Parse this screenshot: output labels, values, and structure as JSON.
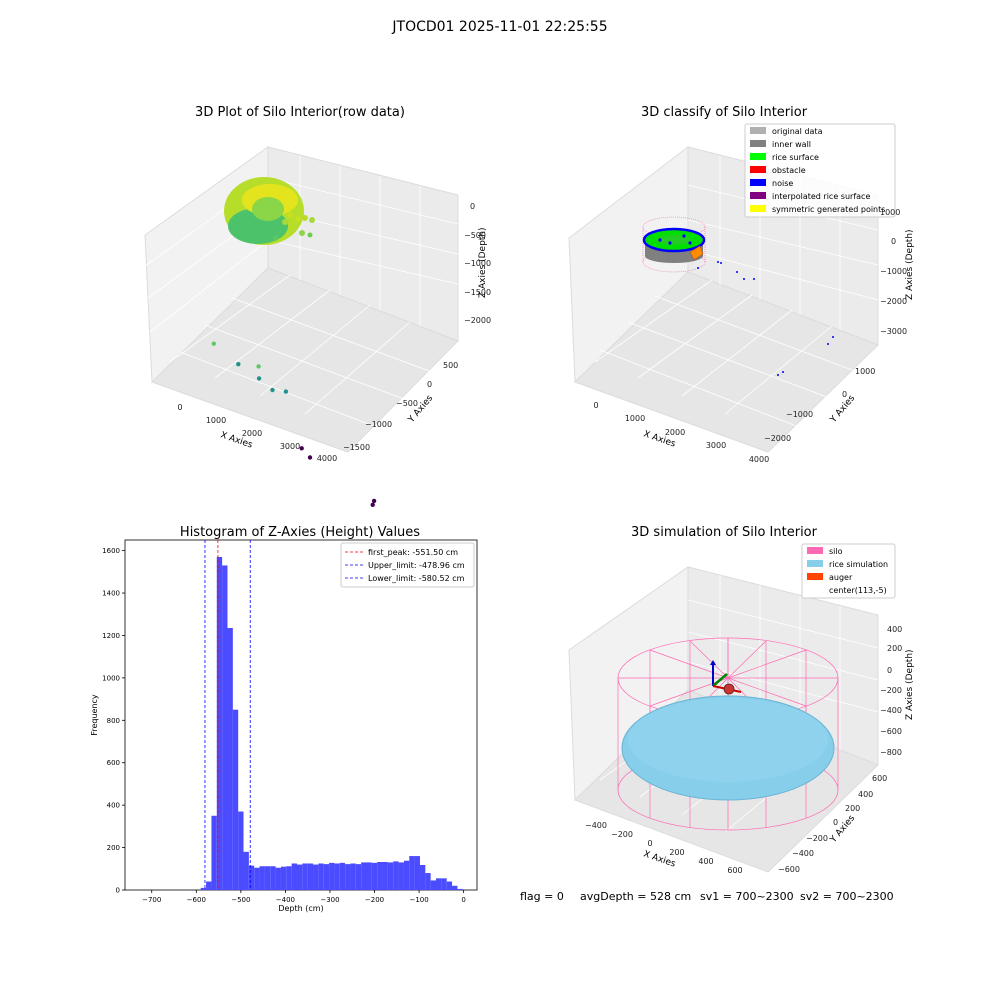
{
  "figure": {
    "title": "JTOCD01 2025-11-01 22:25:55"
  },
  "chart_data": [
    {
      "type": "scatter",
      "projection": "3d",
      "title": "3D Plot of Silo Interior(row data)",
      "xlabel": "X Axies",
      "ylabel": "Y Axies",
      "zlabel": "Z Axies (Depth)",
      "xticks": [
        "0",
        "1000",
        "2000",
        "3000",
        "4000"
      ],
      "yticks": [
        "500",
        "0",
        "−500",
        "−1000",
        "−1500"
      ],
      "zticks": [
        "0",
        "−500",
        "−1000",
        "−1500",
        "−2000"
      ],
      "xlim": [
        -500,
        4200
      ],
      "ylim": [
        -1700,
        700
      ],
      "zlim": [
        -2400,
        100
      ],
      "grid": true,
      "colormap": "viridis (color = depth)",
      "points": [
        {
          "x": 1400,
          "y": 300,
          "z": -750
        },
        {
          "x": 1900,
          "y": 200,
          "z": -950
        },
        {
          "x": 2300,
          "y": 100,
          "z": -1050
        },
        {
          "x": 2500,
          "y": 0,
          "z": -1150
        },
        {
          "x": 2700,
          "y": -100,
          "z": -1050
        },
        {
          "x": 1800,
          "y": -200,
          "z": -700
        },
        {
          "x": 4100,
          "y": 500,
          "z": -2300
        },
        {
          "x": 4000,
          "y": 300,
          "z": -2350
        },
        {
          "x": 3100,
          "y": -1300,
          "z": -2250
        },
        {
          "x": 3300,
          "y": -1200,
          "z": -2200
        }
      ],
      "description_cluster": "dense ring of points near x~0-800, depth 0 to -550"
    },
    {
      "type": "scatter",
      "projection": "3d",
      "title": "3D classify of Silo Interior",
      "xlabel": "X Axies",
      "ylabel": "Y Axies",
      "zlabel": "Z Axies (Depth)",
      "xticks": [
        "0",
        "1000",
        "2000",
        "3000",
        "4000"
      ],
      "yticks": [
        "1000",
        "0",
        "−1000",
        "−2000"
      ],
      "zticks": [
        "1000",
        "0",
        "−1000",
        "−2000",
        "−3000"
      ],
      "legend_position": "upper right",
      "legend": [
        {
          "label": "original data",
          "color": "#b0b0b0"
        },
        {
          "label": "inner wall",
          "color": "#808080"
        },
        {
          "label": "rice surface",
          "color": "#00ff00"
        },
        {
          "label": "obstacle",
          "color": "#ff0000"
        },
        {
          "label": "noise",
          "color": "#0000ff"
        },
        {
          "label": "interpolated rice surface",
          "color": "#800080"
        },
        {
          "label": "symmetric generated points",
          "color": "#ffff00"
        }
      ],
      "grid": true
    },
    {
      "type": "bar",
      "title": "Histogram of Z-Axies (Height) Values",
      "xlabel": "Depth (cm)",
      "ylabel": "Frequency",
      "xlim": [
        -760,
        30
      ],
      "ylim": [
        0,
        1650
      ],
      "xticks": [
        -700,
        -600,
        -500,
        -400,
        -300,
        -200,
        -100,
        0
      ],
      "yticks": [
        0,
        200,
        400,
        600,
        800,
        1000,
        1200,
        1400,
        1600
      ],
      "bar_color": "#4b4bff",
      "bin_width": 12,
      "bins": [
        {
          "left": -590,
          "value": 10
        },
        {
          "left": -578,
          "value": 40
        },
        {
          "left": -566,
          "value": 350
        },
        {
          "left": -554,
          "value": 1570
        },
        {
          "left": -542,
          "value": 1530
        },
        {
          "left": -530,
          "value": 1235
        },
        {
          "left": -518,
          "value": 850
        },
        {
          "left": -506,
          "value": 370
        },
        {
          "left": -494,
          "value": 180
        },
        {
          "left": -482,
          "value": 115
        },
        {
          "left": -470,
          "value": 105
        },
        {
          "left": -458,
          "value": 112
        },
        {
          "left": -446,
          "value": 112
        },
        {
          "left": -434,
          "value": 112
        },
        {
          "left": -422,
          "value": 105
        },
        {
          "left": -410,
          "value": 110
        },
        {
          "left": -398,
          "value": 112
        },
        {
          "left": -386,
          "value": 125
        },
        {
          "left": -374,
          "value": 120
        },
        {
          "left": -362,
          "value": 125
        },
        {
          "left": -350,
          "value": 125
        },
        {
          "left": -338,
          "value": 120
        },
        {
          "left": -326,
          "value": 125
        },
        {
          "left": -314,
          "value": 122
        },
        {
          "left": -302,
          "value": 128
        },
        {
          "left": -290,
          "value": 125
        },
        {
          "left": -278,
          "value": 128
        },
        {
          "left": -266,
          "value": 122
        },
        {
          "left": -254,
          "value": 125
        },
        {
          "left": -242,
          "value": 122
        },
        {
          "left": -230,
          "value": 130
        },
        {
          "left": -218,
          "value": 130
        },
        {
          "left": -206,
          "value": 128
        },
        {
          "left": -194,
          "value": 132
        },
        {
          "left": -182,
          "value": 132
        },
        {
          "left": -170,
          "value": 130
        },
        {
          "left": -158,
          "value": 135
        },
        {
          "left": -146,
          "value": 130
        },
        {
          "left": -134,
          "value": 138
        },
        {
          "left": -122,
          "value": 160
        },
        {
          "left": -110,
          "value": 160
        },
        {
          "left": -98,
          "value": 118
        },
        {
          "left": -86,
          "value": 80
        },
        {
          "left": -74,
          "value": 45
        },
        {
          "left": -62,
          "value": 55
        },
        {
          "left": -50,
          "value": 55
        },
        {
          "left": -38,
          "value": 40
        },
        {
          "left": -26,
          "value": 20
        },
        {
          "left": -14,
          "value": 5
        }
      ],
      "vlines": [
        {
          "label": "first_peak: -551.50 cm",
          "x": -551.5,
          "color": "#ff0000"
        },
        {
          "label": "Upper_limit: -478.96 cm",
          "x": -478.96,
          "color": "#0000ff"
        },
        {
          "label": "Lower_limit: -580.52 cm",
          "x": -580.52,
          "color": "#0000ff"
        }
      ],
      "legend_position": "upper right"
    },
    {
      "type": "surface",
      "projection": "3d",
      "title": "3D simulation of Silo Interior",
      "xlabel": "X Axies",
      "ylabel": "Y Axies",
      "zlabel": "Z Axies (Depth)",
      "xticks": [
        "−400",
        "−200",
        "0",
        "200",
        "400",
        "600"
      ],
      "yticks": [
        "600",
        "400",
        "200",
        "0",
        "−200",
        "−400",
        "−600"
      ],
      "zticks": [
        "400",
        "200",
        "0",
        "−200",
        "−400",
        "−600",
        "−800"
      ],
      "legend_position": "upper right",
      "legend": [
        {
          "label": "silo",
          "color": "#ff69b4"
        },
        {
          "label": "rice simulation",
          "color": "#87ceeb"
        },
        {
          "label": "auger",
          "color": "#ff4500"
        },
        {
          "label": "center(113,-5)",
          "color": "none"
        }
      ],
      "grid": true
    }
  ],
  "status": {
    "flag": "flag = 0",
    "avg_depth": "avgDepth = 528 cm",
    "sv1": "sv1 = 700~2300",
    "sv2": "sv2 = 700~2300"
  }
}
